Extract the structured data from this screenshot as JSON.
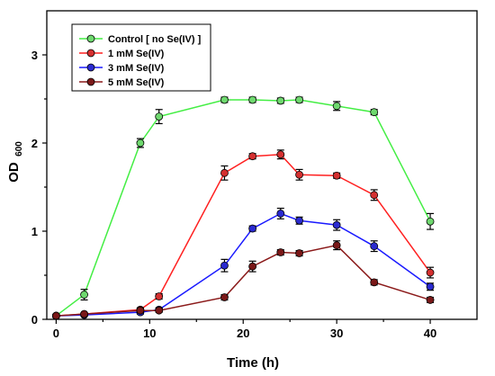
{
  "chart_data": {
    "type": "line",
    "xlabel": "Time (h)",
    "ylabel_main": "OD",
    "ylabel_sub": "600",
    "xlim": [
      -1,
      45
    ],
    "ylim": [
      0,
      3.5
    ],
    "xticks": [
      0,
      10,
      20,
      30,
      40
    ],
    "xtick_labels": [
      "0",
      "10",
      "20",
      "30",
      "40"
    ],
    "yticks": [
      0,
      1,
      2,
      3
    ],
    "ytick_labels": [
      "0",
      "1",
      "2",
      "3"
    ],
    "grid": false,
    "legend_position": "top-left",
    "series": [
      {
        "name": "Control [ no Se(IV) ]",
        "color": "#44ee44",
        "marker_color": "#6fd86f",
        "x": [
          0,
          3,
          9,
          11,
          18,
          21,
          24,
          26,
          30,
          34,
          40
        ],
        "y": [
          0.04,
          0.28,
          2.0,
          2.3,
          2.49,
          2.49,
          2.48,
          2.49,
          2.42,
          2.35,
          1.11
        ],
        "err": [
          0.02,
          0.06,
          0.05,
          0.08,
          0.03,
          0.03,
          0.03,
          0.03,
          0.05,
          0.03,
          0.09
        ]
      },
      {
        "name": "1 mM Se(IV)",
        "color": "#ff2020",
        "marker_color": "#d43030",
        "x": [
          0,
          3,
          9,
          11,
          18,
          21,
          24,
          26,
          30,
          34,
          40
        ],
        "y": [
          0.04,
          0.06,
          0.11,
          0.26,
          1.66,
          1.85,
          1.87,
          1.64,
          1.63,
          1.41,
          0.53
        ],
        "err": [
          0.01,
          0.01,
          0.02,
          0.03,
          0.08,
          0.03,
          0.05,
          0.06,
          0.03,
          0.06,
          0.06
        ]
      },
      {
        "name": "3 mM Se(IV)",
        "color": "#1a1aff",
        "marker_color": "#2a2ad0",
        "x": [
          0,
          3,
          9,
          11,
          18,
          21,
          24,
          26,
          30,
          34,
          40
        ],
        "y": [
          0.04,
          0.05,
          0.08,
          0.11,
          0.61,
          1.03,
          1.2,
          1.12,
          1.07,
          0.83,
          0.37
        ],
        "err": [
          0.01,
          0.01,
          0.02,
          0.02,
          0.07,
          0.03,
          0.06,
          0.04,
          0.06,
          0.06,
          0.04
        ]
      },
      {
        "name": "5 mM Se(IV)",
        "color": "#8b1a1a",
        "marker_color": "#7a1818",
        "x": [
          0,
          3,
          9,
          11,
          18,
          21,
          24,
          26,
          30,
          34,
          40
        ],
        "y": [
          0.04,
          0.06,
          0.1,
          0.1,
          0.25,
          0.6,
          0.76,
          0.75,
          0.84,
          0.42,
          0.22
        ],
        "err": [
          0.01,
          0.01,
          0.02,
          0.02,
          0.03,
          0.06,
          0.03,
          0.03,
          0.05,
          0.03,
          0.03
        ]
      }
    ]
  }
}
